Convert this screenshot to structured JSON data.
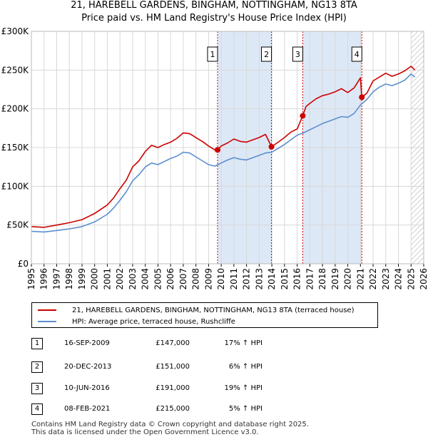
{
  "chart_data": {
    "type": "line",
    "title": "21, HAREBELL GARDENS, BINGHAM, NOTTINGHAM, NG13 8TA",
    "subtitle": "Price paid vs. HM Land Registry's House Price Index (HPI)",
    "xlim": [
      1995,
      2026
    ],
    "ylim": [
      0,
      300000
    ],
    "y_ticks": [
      {
        "value": 0,
        "label": "£0"
      },
      {
        "value": 50000,
        "label": "£50K"
      },
      {
        "value": 100000,
        "label": "£100K"
      },
      {
        "value": 150000,
        "label": "£150K"
      },
      {
        "value": 200000,
        "label": "£200K"
      },
      {
        "value": 250000,
        "label": "£250K"
      },
      {
        "value": 300000,
        "label": "£300K"
      }
    ],
    "x_ticks": [
      "1995",
      "1996",
      "1997",
      "1998",
      "1999",
      "2000",
      "2001",
      "2002",
      "2003",
      "2004",
      "2005",
      "2006",
      "2007",
      "2008",
      "2009",
      "2010",
      "2011",
      "2012",
      "2013",
      "2014",
      "2015",
      "2016",
      "2017",
      "2018",
      "2019",
      "2020",
      "2021",
      "2022",
      "2023",
      "2024",
      "2025",
      "2026"
    ],
    "grid": true,
    "series": [
      {
        "name": "21, HAREBELL GARDENS, BINGHAM, NOTTINGHAM, NG13 8TA (terraced house)",
        "color": "#cc0000",
        "x": [
          1995.0,
          1996.0,
          1997.0,
          1998.0,
          1999.0,
          2000.0,
          2001.0,
          2001.5,
          2002.0,
          2002.5,
          2003.0,
          2003.5,
          2004.0,
          2004.5,
          2005.0,
          2005.5,
          2006.0,
          2006.5,
          2007.0,
          2007.5,
          2008.0,
          2008.5,
          2009.0,
          2009.5,
          2009.71,
          2010.0,
          2010.5,
          2011.0,
          2011.5,
          2012.0,
          2012.5,
          2013.0,
          2013.5,
          2013.97,
          2014.5,
          2015.0,
          2015.5,
          2016.0,
          2016.44,
          2016.7,
          2017.0,
          2017.5,
          2018.0,
          2018.5,
          2019.0,
          2019.5,
          2020.0,
          2020.5,
          2021.0,
          2021.11,
          2021.5,
          2022.0,
          2022.5,
          2023.0,
          2023.5,
          2024.0,
          2024.5,
          2025.0,
          2025.3
        ],
        "values": [
          48000,
          47000,
          50000,
          53000,
          57000,
          65000,
          76000,
          85000,
          97000,
          108000,
          125000,
          133000,
          145000,
          153000,
          150000,
          154000,
          157000,
          162000,
          169000,
          168000,
          163000,
          158000,
          152000,
          147000,
          147000,
          152000,
          156000,
          161000,
          158000,
          157000,
          160000,
          163000,
          167000,
          151000,
          157000,
          163000,
          170000,
          174000,
          191000,
          203000,
          207000,
          213000,
          217000,
          219000,
          222000,
          226000,
          221000,
          227000,
          240000,
          215000,
          220000,
          236000,
          241000,
          246000,
          242000,
          245000,
          249000,
          255000,
          250000
        ]
      },
      {
        "name": "HPI: Average price, terraced house, Rushcliffe",
        "color": "#5b8fcf",
        "x": [
          1995.0,
          1996.0,
          1997.0,
          1998.0,
          1999.0,
          2000.0,
          2001.0,
          2001.5,
          2002.0,
          2002.5,
          2003.0,
          2003.5,
          2004.0,
          2004.5,
          2005.0,
          2005.5,
          2006.0,
          2006.5,
          2007.0,
          2007.5,
          2008.0,
          2008.5,
          2009.0,
          2009.5,
          2010.0,
          2010.5,
          2011.0,
          2011.5,
          2012.0,
          2012.5,
          2013.0,
          2013.5,
          2014.0,
          2014.5,
          2015.0,
          2015.5,
          2016.0,
          2016.5,
          2017.0,
          2017.5,
          2018.0,
          2018.5,
          2019.0,
          2019.5,
          2020.0,
          2020.5,
          2021.0,
          2021.5,
          2022.0,
          2022.5,
          2023.0,
          2023.5,
          2024.0,
          2024.5,
          2025.0,
          2025.3
        ],
        "values": [
          42000,
          41000,
          43000,
          45000,
          48000,
          54000,
          64000,
          72000,
          82000,
          93000,
          107000,
          115000,
          125000,
          130000,
          128000,
          132000,
          136000,
          139000,
          144000,
          143000,
          138000,
          133000,
          128000,
          126000,
          130000,
          134000,
          137000,
          135000,
          134000,
          137000,
          140000,
          143000,
          144000,
          149000,
          154000,
          160000,
          166000,
          169000,
          173000,
          177000,
          181000,
          184000,
          187000,
          190000,
          189000,
          194000,
          205000,
          212000,
          222000,
          228000,
          232000,
          230000,
          233000,
          237000,
          245000,
          241000
        ]
      }
    ],
    "sales": [
      {
        "num": "1",
        "x": 2009.71,
        "value": 147000,
        "date": "16-SEP-2009",
        "price": "£147,000",
        "hpi": "17% ↑ HPI"
      },
      {
        "num": "2",
        "x": 2013.97,
        "value": 151000,
        "date": "20-DEC-2013",
        "price": "£151,000",
        "hpi": "6% ↑ HPI"
      },
      {
        "num": "3",
        "x": 2016.44,
        "value": 191000,
        "date": "10-JUN-2016",
        "price": "£191,000",
        "hpi": "19% ↑ HPI"
      },
      {
        "num": "4",
        "x": 2021.11,
        "value": 215000,
        "date": "08-FEB-2021",
        "price": "£215,000",
        "hpi": "5% ↑ HPI"
      }
    ],
    "shaded_ranges": [
      [
        2009.71,
        2013.97
      ],
      [
        2016.44,
        2021.11
      ]
    ],
    "hatch_from": 2025.0,
    "colors": {
      "shade": "#dde8f6",
      "sale_line": "#cc0000"
    }
  },
  "legend": {
    "property_label": "21, HAREBELL GARDENS, BINGHAM, NOTTINGHAM, NG13 8TA (terraced house)",
    "hpi_label": "HPI: Average price, terraced house, Rushcliffe"
  },
  "footer": {
    "line1": "Contains HM Land Registry data © Crown copyright and database right 2025.",
    "line2": "This data is licensed under the Open Government Licence v3.0."
  }
}
